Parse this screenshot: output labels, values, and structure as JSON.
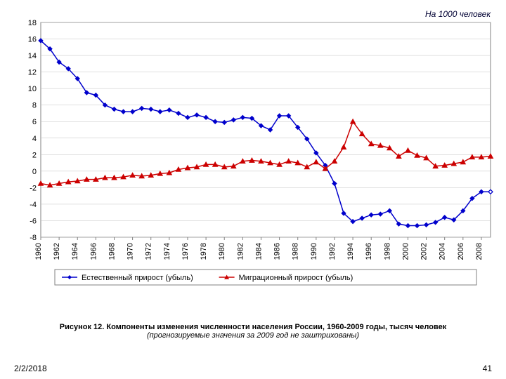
{
  "chart": {
    "type": "line",
    "supertitle": "На 1000 человек",
    "supertitle_fontsize": 12,
    "supertitle_style": "italic",
    "plot_bg": "#ffffff",
    "grid_color": "#c0c0c0",
    "axis_color": "#808080",
    "border_color": "#808080",
    "xlim": [
      1960,
      2009
    ],
    "ylim": [
      -8,
      18
    ],
    "ytick_step": 2,
    "yticks": [
      -8,
      -6,
      -4,
      -2,
      0,
      2,
      4,
      6,
      8,
      10,
      12,
      14,
      16,
      18
    ],
    "xticks": [
      1960,
      1962,
      1964,
      1966,
      1968,
      1970,
      1972,
      1974,
      1976,
      1978,
      1980,
      1982,
      1984,
      1986,
      1988,
      1990,
      1992,
      1994,
      1996,
      1998,
      2000,
      2002,
      2004,
      2006,
      2008
    ],
    "tick_fontsize": 11,
    "x_tick_rotation": -90,
    "series": [
      {
        "label": "Естественный прирост (убыль)",
        "color": "#0000cc",
        "marker": "diamond",
        "marker_size": 6,
        "line_width": 1.5,
        "x": [
          1960,
          1961,
          1962,
          1963,
          1964,
          1965,
          1966,
          1967,
          1968,
          1969,
          1970,
          1971,
          1972,
          1973,
          1974,
          1975,
          1976,
          1977,
          1978,
          1979,
          1980,
          1981,
          1982,
          1983,
          1984,
          1985,
          1986,
          1987,
          1988,
          1989,
          1990,
          1991,
          1992,
          1993,
          1994,
          1995,
          1996,
          1997,
          1998,
          1999,
          2000,
          2001,
          2002,
          2003,
          2004,
          2005,
          2006,
          2007,
          2008,
          2009
        ],
        "y": [
          15.8,
          14.8,
          13.2,
          12.4,
          11.2,
          9.5,
          9.2,
          8.0,
          7.5,
          7.2,
          7.2,
          7.6,
          7.5,
          7.2,
          7.4,
          7.0,
          6.5,
          6.8,
          6.5,
          6.0,
          5.9,
          6.2,
          6.5,
          6.4,
          5.5,
          5.0,
          6.7,
          6.7,
          5.3,
          3.9,
          2.2,
          0.7,
          -1.5,
          -5.1,
          -6.1,
          -5.7,
          -5.3,
          -5.2,
          -4.8,
          -6.4,
          -6.6,
          -6.6,
          -6.5,
          -6.2,
          -5.6,
          -5.9,
          -4.8,
          -3.3,
          -2.5,
          -2.5
        ]
      },
      {
        "label": "Миграционный прирост (убыль)",
        "color": "#cc0000",
        "marker": "triangle",
        "marker_size": 7,
        "line_width": 1.5,
        "x": [
          1960,
          1961,
          1962,
          1963,
          1964,
          1965,
          1966,
          1967,
          1968,
          1969,
          1970,
          1971,
          1972,
          1973,
          1974,
          1975,
          1976,
          1977,
          1978,
          1979,
          1980,
          1981,
          1982,
          1983,
          1984,
          1985,
          1986,
          1987,
          1988,
          1989,
          1990,
          1991,
          1992,
          1993,
          1994,
          1995,
          1996,
          1997,
          1998,
          1999,
          2000,
          2001,
          2002,
          2003,
          2004,
          2005,
          2006,
          2007,
          2008,
          2009
        ],
        "y": [
          -1.5,
          -1.7,
          -1.5,
          -1.3,
          -1.2,
          -1.0,
          -1.0,
          -0.8,
          -0.8,
          -0.7,
          -0.5,
          -0.6,
          -0.5,
          -0.3,
          -0.2,
          0.2,
          0.4,
          0.5,
          0.8,
          0.8,
          0.5,
          0.6,
          1.2,
          1.3,
          1.2,
          1.0,
          0.8,
          1.2,
          1.0,
          0.5,
          1.1,
          0.3,
          1.2,
          2.9,
          6.0,
          4.5,
          3.3,
          3.1,
          2.8,
          1.8,
          2.5,
          1.9,
          1.6,
          0.6,
          0.7,
          0.9,
          1.1,
          1.7,
          1.7,
          1.8
        ]
      }
    ],
    "forecast_marker": {
      "x": 2009,
      "series_index": 0,
      "fill": "#ffffff",
      "stroke": "#0000cc"
    },
    "legend": {
      "position": "bottom",
      "border_color": "#808080",
      "bg": "#ffffff",
      "fontsize": 11
    }
  },
  "caption": {
    "main": "Рисунок 12. Компоненты изменения численности населения России, 1960-2009 годы, тысяч человек",
    "sub": "(прогнозируемые значения за 2009 год не заштрихованы)"
  },
  "footer": {
    "date": "2/2/2018",
    "page": "41"
  }
}
